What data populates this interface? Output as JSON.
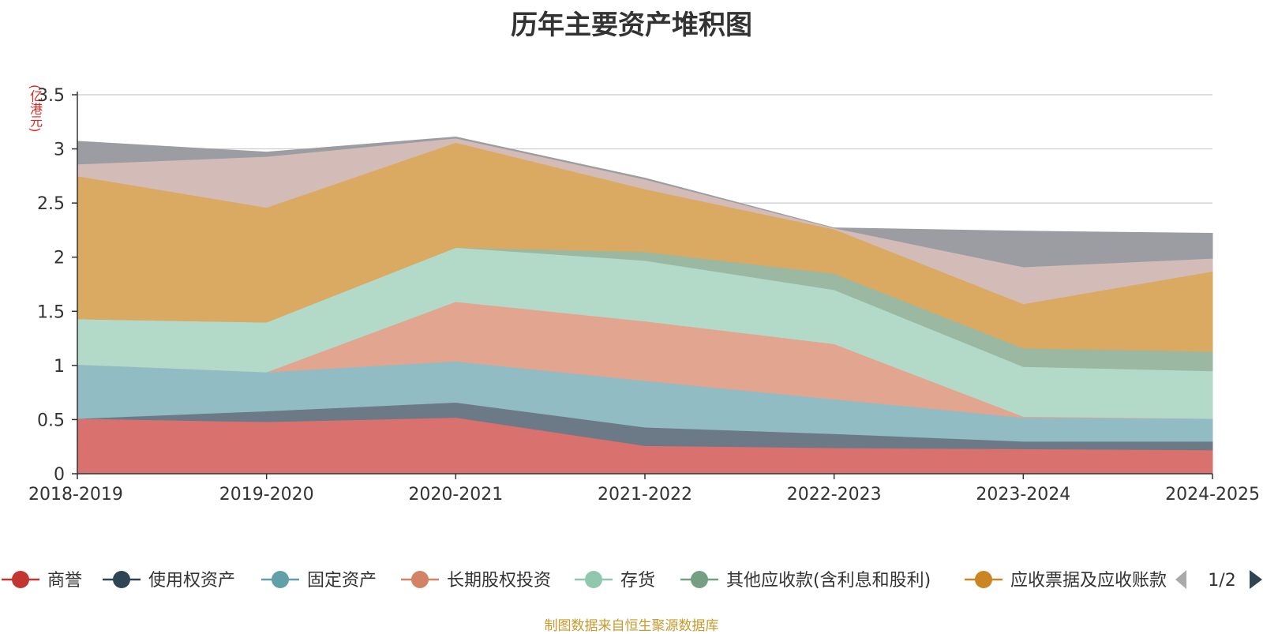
{
  "chart_data": {
    "type": "area",
    "stacked": true,
    "title": "历年主要资产堆积图",
    "ylabel": "(亿港元)",
    "ylim": [
      0,
      3.5
    ],
    "yticks": [
      "0",
      "0.5",
      "1",
      "1.5",
      "2",
      "2.5",
      "3",
      "3.5"
    ],
    "grid": true,
    "categories": [
      "2018-2019",
      "2019-2020",
      "2020-2021",
      "2021-2022",
      "2022-2023",
      "2023-2024",
      "2024-2025"
    ],
    "series": [
      {
        "name": "商誉",
        "color": "#d9716f",
        "legend_color": "#c23531",
        "values": [
          0.51,
          0.48,
          0.52,
          0.26,
          0.24,
          0.23,
          0.22
        ]
      },
      {
        "name": "使用权资产",
        "color": "#6b7a86",
        "legend_color": "#2f4554",
        "values": [
          0.0,
          0.1,
          0.14,
          0.17,
          0.13,
          0.07,
          0.08
        ]
      },
      {
        "name": "固定资产",
        "color": "#92bcc3",
        "legend_color": "#61a0a8",
        "values": [
          0.5,
          0.36,
          0.38,
          0.43,
          0.32,
          0.22,
          0.21
        ]
      },
      {
        "name": "长期股权投资",
        "color": "#e2a590",
        "legend_color": "#d48265",
        "values": [
          0.0,
          0.0,
          0.55,
          0.55,
          0.51,
          0.01,
          0.0
        ]
      },
      {
        "name": "存货",
        "color": "#b3dac8",
        "legend_color": "#91c7ae",
        "values": [
          0.42,
          0.46,
          0.5,
          0.56,
          0.5,
          0.46,
          0.44
        ]
      },
      {
        "name": "其他应收款(含利息和股利)",
        "color": "#9ab8a2",
        "legend_color": "#749f83",
        "values": [
          0.0,
          0.0,
          0.0,
          0.08,
          0.15,
          0.17,
          0.18
        ]
      },
      {
        "name": "应收票据及应收账款",
        "color": "#dbaa62",
        "legend_color": "#ca8622",
        "values": [
          1.32,
          1.06,
          0.97,
          0.58,
          0.41,
          0.41,
          0.74
        ]
      },
      {
        "name": "",
        "color": "#d3bcb8",
        "values": [
          0.11,
          0.47,
          0.04,
          0.09,
          0.01,
          0.34,
          0.12
        ]
      },
      {
        "name": "",
        "color": "#9c9da2",
        "values": [
          0.21,
          0.04,
          0.01,
          0.01,
          0.0,
          0.33,
          0.23
        ]
      }
    ],
    "legend": {
      "position": "bottom",
      "page": "1/2",
      "visible_label_truncated": "应收票据及应收账款"
    }
  },
  "footer": "制图数据来自恒生聚源数据库"
}
